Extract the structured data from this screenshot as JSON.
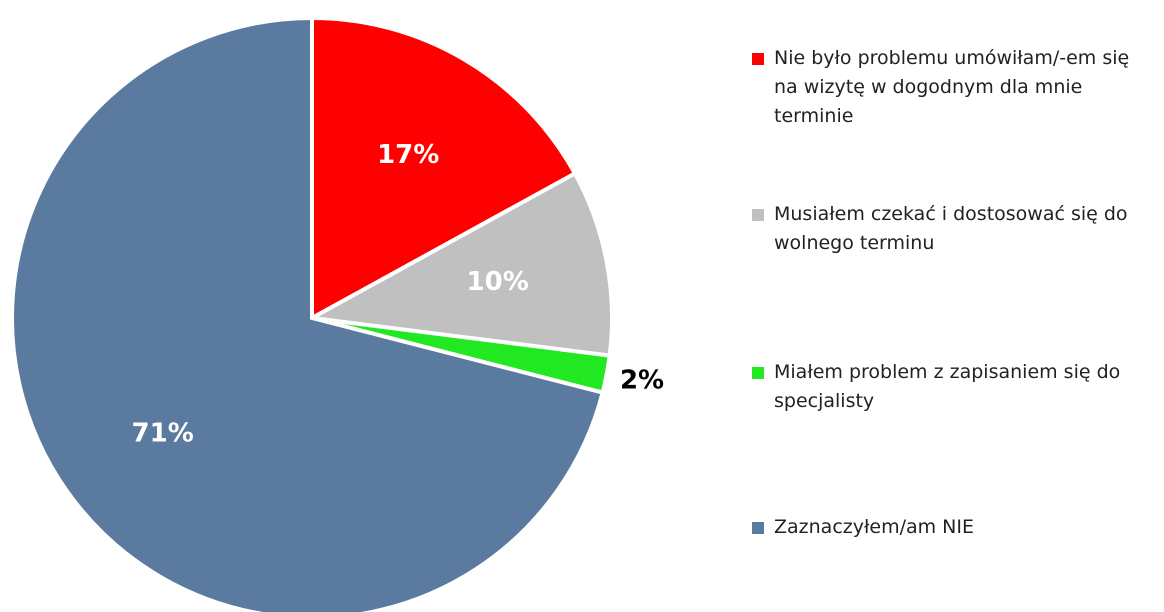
{
  "chart_data": {
    "type": "pie",
    "categories": [
      "Nie było problemu umówiłam/-em się na wizytę w dogodnym dla mnie terminie",
      "Musiałem czekać i dostosować się do wolnego terminu",
      "Miałem problem z zapisaniem się do specjalisty",
      "Zaznaczyłem/am NIE"
    ],
    "values": [
      17,
      10,
      2,
      71
    ],
    "value_labels": [
      "17%",
      "10%",
      "2%",
      "71%"
    ],
    "colors": [
      "#ff0000",
      "#c0c0c0",
      "#22e822",
      "#5b7a9f"
    ],
    "label_colors": [
      "#ffffff",
      "#ffffff",
      "#000000",
      "#ffffff"
    ],
    "legend": "right"
  }
}
